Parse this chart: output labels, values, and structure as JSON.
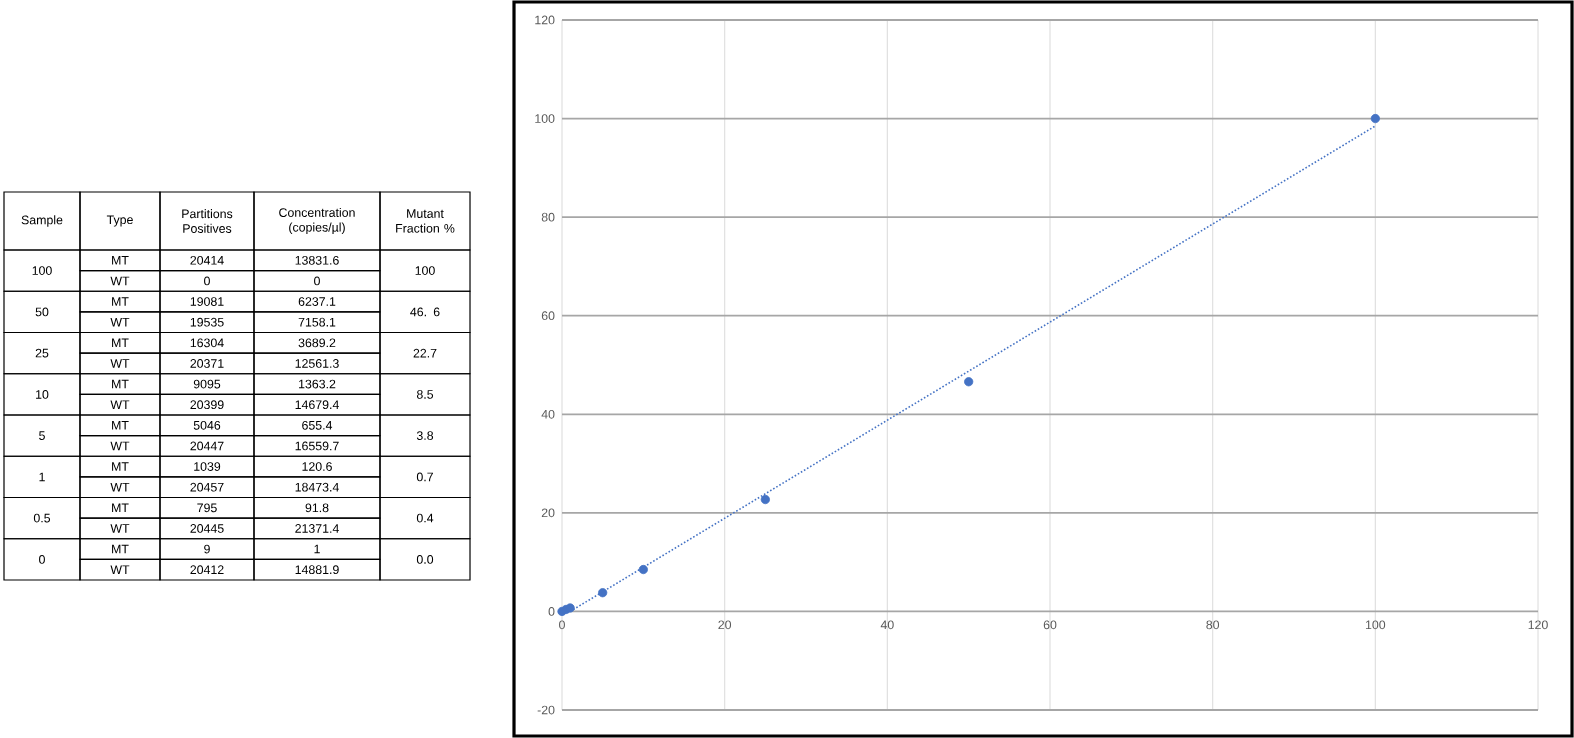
{
  "chart_data": [
    {
      "type": "other",
      "annotations": [
        "Sample",
        "Type",
        "Partitions Positives",
        "Concentration (copies/µl)",
        "Mutant Fraction %",
        "100",
        "MT",
        "20414",
        "13831.6",
        "100",
        "WT",
        "0",
        "0",
        "50",
        "MT",
        "19081",
        "6237.1",
        "46. 6",
        "WT",
        "19535",
        "7158.1",
        "25",
        "MT",
        "16304",
        "3689.2",
        "22.7",
        "WT",
        "20371",
        "12561.3",
        "10",
        "MT",
        "9095",
        "1363.2",
        "8.5",
        "WT",
        "20399",
        "14679.4",
        "5",
        "MT",
        "5046",
        "655.4",
        "3.8",
        "WT",
        "20447",
        "16559.7",
        "1",
        "MT",
        "1039",
        "120.6",
        "0.7",
        "WT",
        "20457",
        "18473.4",
        "0.5",
        "MT",
        "795",
        "91.8",
        "0.4",
        "WT",
        "20445",
        "21371.4",
        "0",
        "MT",
        "9",
        "1",
        "0.0",
        "WT",
        "20412",
        "14881.9"
      ]
    },
    {
      "type": "scatter",
      "xlim": [
        0,
        120
      ],
      "xticks": [
        0,
        20,
        40,
        60,
        80,
        100,
        120
      ],
      "ylim": [
        -20,
        120
      ],
      "yticks": [
        -20,
        0,
        20,
        40,
        60,
        80,
        100,
        120
      ],
      "grid": true,
      "series": [
        {
          "type": "scatter",
          "color": "#4472c4",
          "marker": "circle",
          "x": [
            0,
            0.5,
            1,
            5,
            10,
            25,
            50,
            100
          ],
          "values": [
            0.0,
            0.4,
            0.7,
            3.8,
            8.5,
            22.7,
            46.6,
            100
          ]
        },
        {
          "type": "line",
          "color": "#4472c4",
          "line_style": "dotted",
          "marker": "none",
          "x": [
            1,
            100
          ],
          "values": [
            0,
            98.5
          ]
        }
      ]
    }
  ]
}
